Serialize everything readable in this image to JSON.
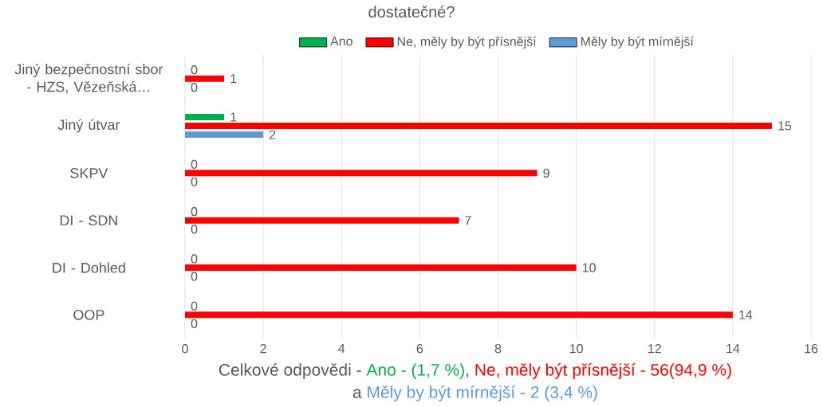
{
  "chart_data": {
    "type": "bar",
    "orientation": "horizontal",
    "title": "dostatečné?",
    "categories": [
      "Jiný bezpečnostní sbor - HZS, Vězeňská…",
      "Jiný útvar",
      "SKPV",
      "DI - SDN",
      "DI - Dohled",
      "OOP"
    ],
    "series": [
      {
        "name": "Ano",
        "color": "#00b050",
        "values": [
          0,
          1,
          0,
          0,
          0,
          0
        ]
      },
      {
        "name": "Ne, měly by být přísnější",
        "color": "#ff0000",
        "values": [
          1,
          15,
          9,
          7,
          10,
          14
        ]
      },
      {
        "name": "Měly by být mírnější",
        "color": "#5b9bd5",
        "values": [
          0,
          2,
          0,
          0,
          0,
          0
        ]
      }
    ],
    "xlim": [
      0,
      16
    ],
    "xticks": [
      0,
      2,
      4,
      6,
      8,
      10,
      12,
      14,
      16
    ],
    "grid": "x",
    "legend": "top",
    "data_labels": true,
    "annotations": [
      "Celkové odpovědi -",
      "Ano - (1,7 %)",
      ",",
      "Ne, měly být přísnější - 56(94,9 %)",
      "a",
      "Měly by být mírnější - 2 (3,4 %)"
    ]
  }
}
